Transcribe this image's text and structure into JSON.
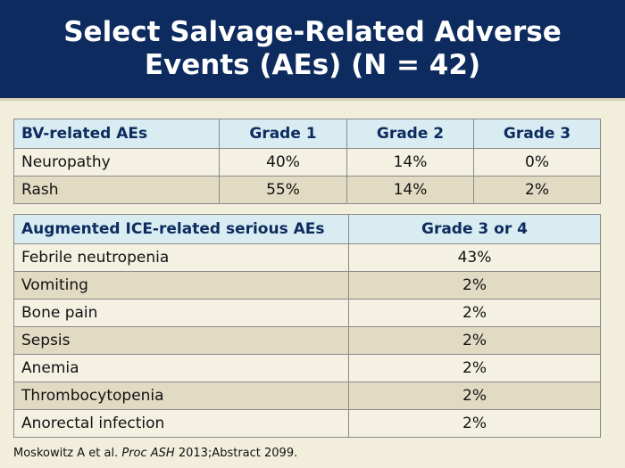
{
  "title_line1": "Select Salvage-Related Adverse",
  "title_line2": "Events (AEs) (N = 42)",
  "bv_table": {
    "headers": [
      "BV-related AEs",
      "Grade 1",
      "Grade 2",
      "Grade 3"
    ],
    "rows": [
      [
        "Neuropathy",
        "40%",
        "14%",
        "0%"
      ],
      [
        "Rash",
        "55%",
        "14%",
        "2%"
      ]
    ]
  },
  "ice_table": {
    "headers": [
      "Augmented ICE-related serious AEs",
      "Grade 3 or 4"
    ],
    "rows": [
      [
        "Febrile neutropenia",
        "43%"
      ],
      [
        "Vomiting",
        "2%"
      ],
      [
        "Bone pain",
        "2%"
      ],
      [
        "Sepsis",
        "2%"
      ],
      [
        "Anemia",
        "2%"
      ],
      [
        "Thrombocytopenia",
        "2%"
      ],
      [
        "Anorectal infection",
        "2%"
      ]
    ]
  },
  "citation": {
    "authors": "Moskowitz A et al. ",
    "journal": "Proc ASH",
    "rest": " 2013;Abstract 2099."
  }
}
